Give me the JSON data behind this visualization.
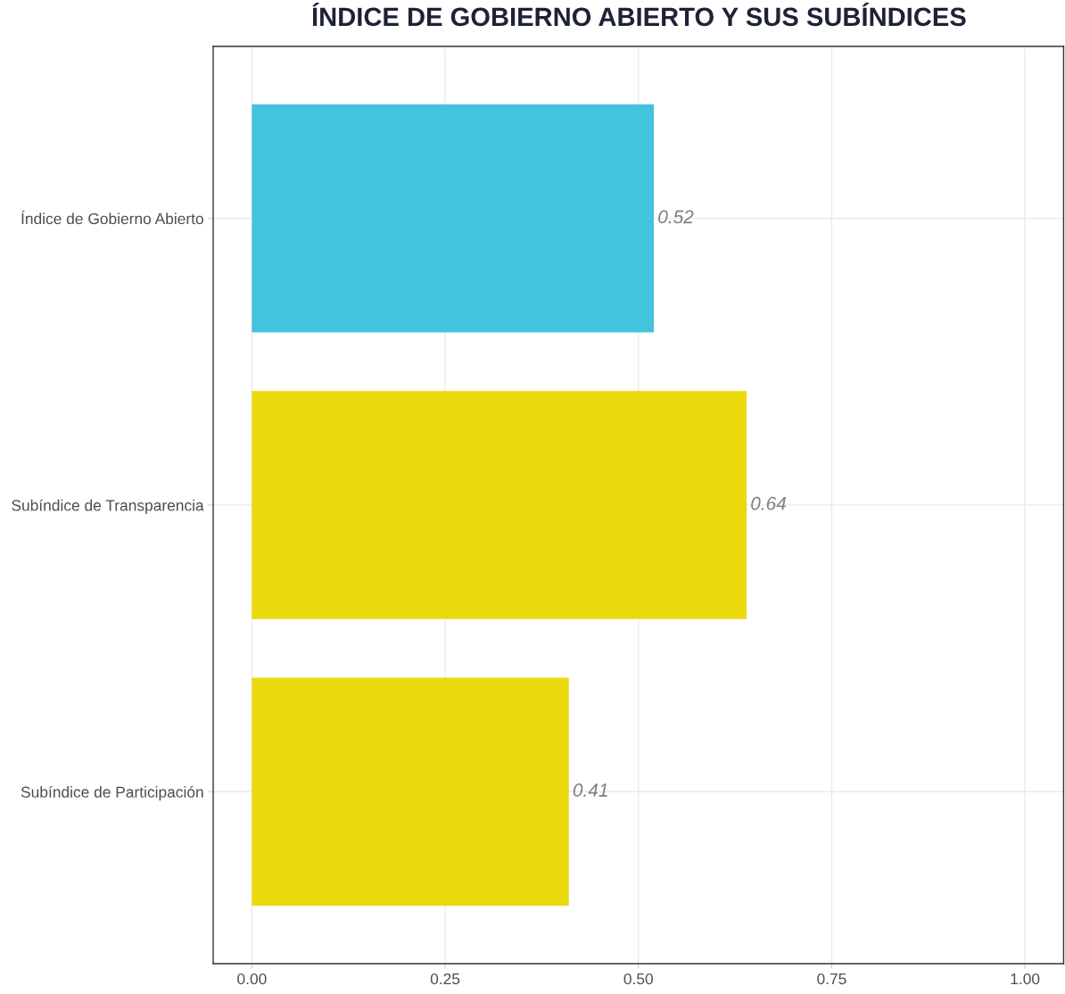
{
  "chart_data": {
    "type": "bar",
    "orientation": "horizontal",
    "title": "ÍNDICE DE GOBIERNO ABIERTO Y SUS SUBÍNDICES",
    "categories": [
      "Índice de Gobierno Abierto",
      "Subíndice de Transparencia",
      "Subíndice de Participación"
    ],
    "values": [
      0.52,
      0.64,
      0.41
    ],
    "colors": [
      "#42c4dc",
      "#ead90d",
      "#ead90d"
    ],
    "xlim": [
      -0.05,
      1.05
    ],
    "xticks": [
      {
        "value": 0,
        "label": "0.00"
      },
      {
        "value": 0.25,
        "label": "0.25"
      },
      {
        "value": 0.5,
        "label": "0.50"
      },
      {
        "value": 0.75,
        "label": "0.75"
      },
      {
        "value": 1,
        "label": "1.00"
      }
    ],
    "data_labels": true,
    "grid": true,
    "legend": false
  }
}
